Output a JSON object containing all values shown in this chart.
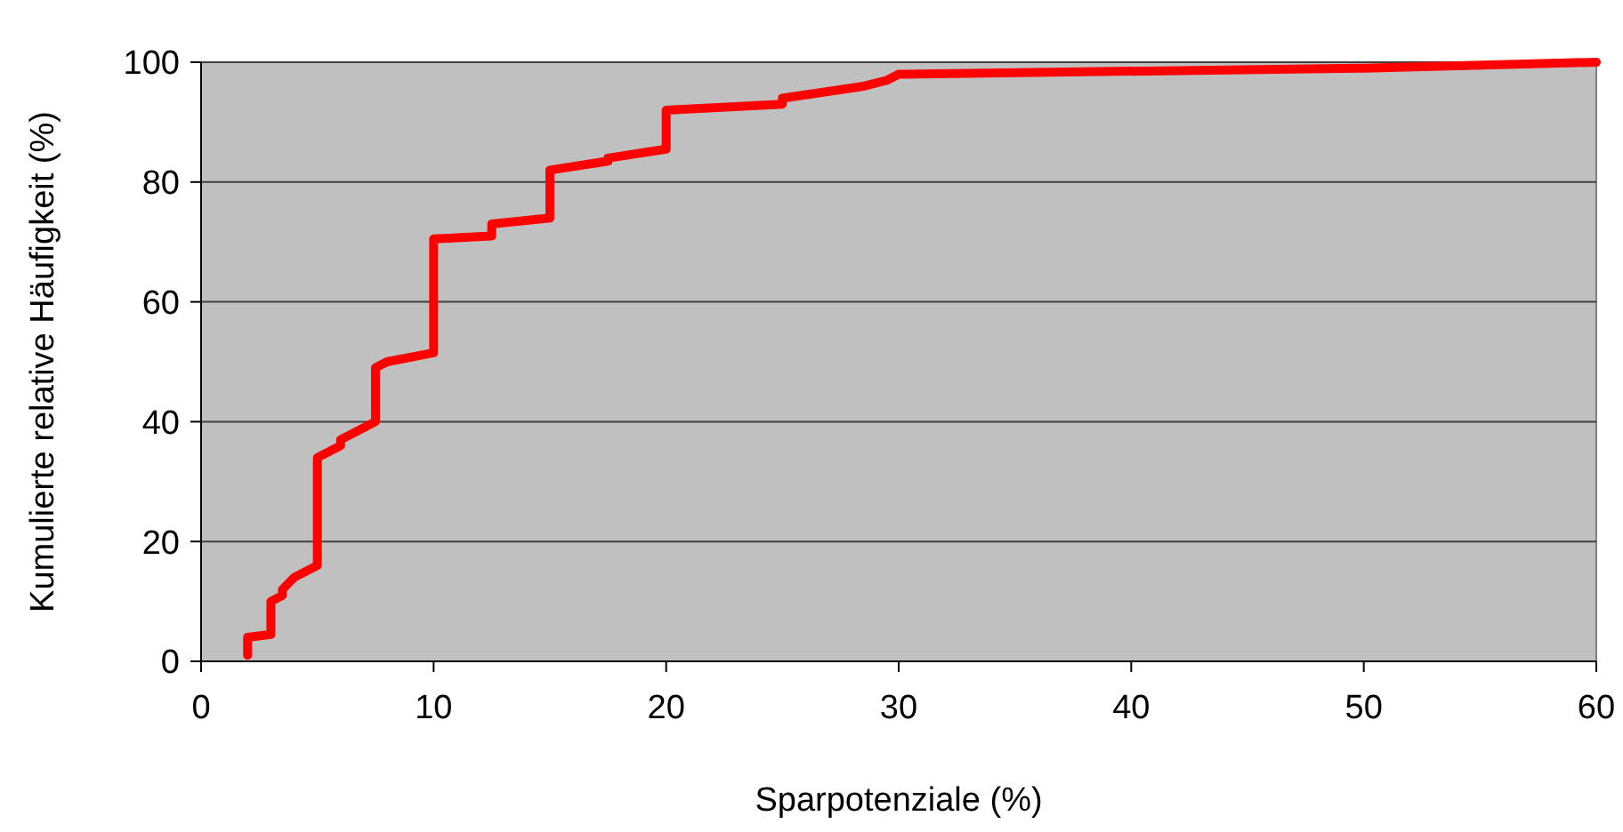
{
  "chart_data": {
    "type": "line",
    "xlabel": "Sparpotenziale (%)",
    "ylabel": "Kumulierte relative Häufigkeit (%)",
    "x": [
      2,
      2,
      3,
      3,
      3.5,
      3.5,
      4,
      5,
      5,
      5.5,
      6,
      6,
      6.5,
      7,
      7.5,
      7.5,
      8,
      10,
      10,
      12.5,
      12.5,
      15,
      15,
      17.5,
      17.5,
      20,
      20,
      25,
      25,
      28.5,
      29.5,
      30,
      50,
      60
    ],
    "series": [
      {
        "color": "#ff0000",
        "values": [
          1,
          4,
          4.5,
          10,
          11,
          12,
          14,
          16,
          34,
          35,
          36,
          37,
          38,
          39,
          40,
          49,
          50,
          51.5,
          70.5,
          71,
          73,
          74,
          82,
          83.5,
          84,
          85.5,
          92,
          93,
          94,
          96,
          97,
          98,
          99,
          100
        ]
      }
    ],
    "xlim": [
      0,
      60
    ],
    "xticks": [
      0,
      10,
      20,
      30,
      40,
      50,
      60
    ],
    "ylim": [
      0,
      100
    ],
    "yticks": [
      0,
      20,
      40,
      60,
      80,
      100
    ],
    "grid": "y",
    "marker": "none",
    "line_style": "solid"
  }
}
